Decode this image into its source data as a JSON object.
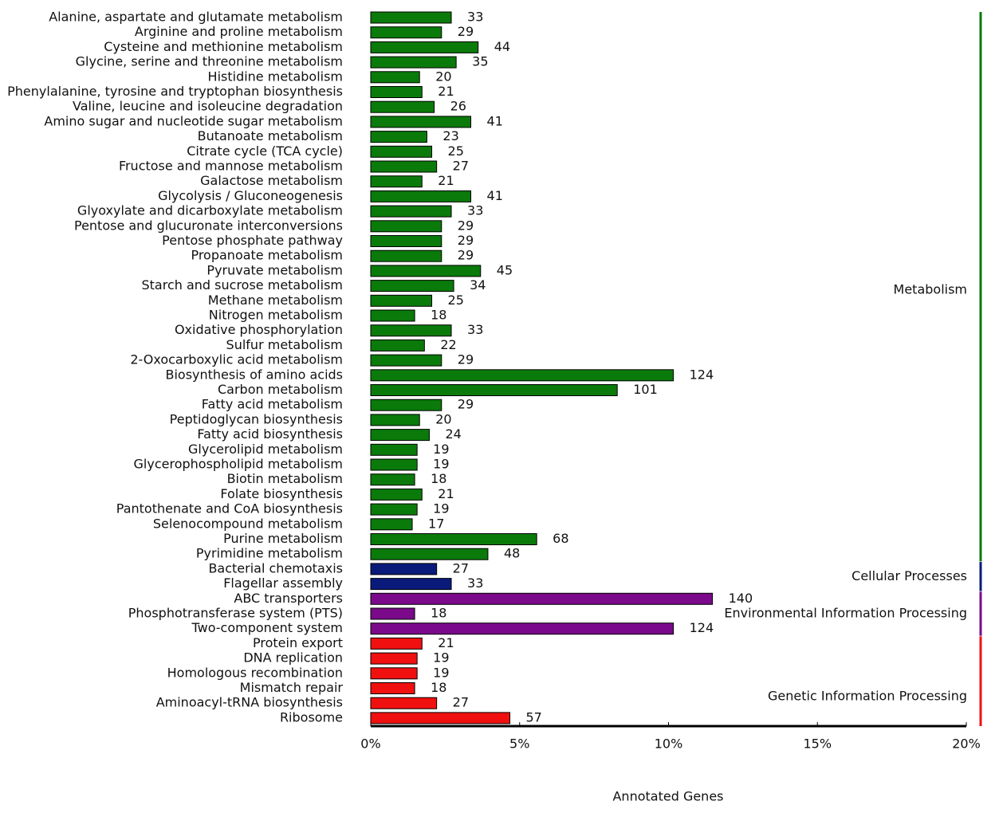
{
  "chart_data": {
    "type": "bar",
    "orientation": "horizontal",
    "xlabel": "Annotated Genes",
    "xlim": [
      0,
      244
    ],
    "xticks": [
      {
        "value": 0,
        "label": "0%"
      },
      {
        "value": 61,
        "label": "5%"
      },
      {
        "value": 122,
        "label": "10%"
      },
      {
        "value": 183,
        "label": "15%"
      },
      {
        "value": 244,
        "label": "20%"
      }
    ],
    "groups": [
      {
        "name": "Metabolism",
        "color": "#0a7a0a",
        "categories": [
          "Alanine, aspartate and glutamate metabolism",
          "Arginine and proline metabolism",
          "Cysteine and methionine metabolism",
          "Glycine, serine and threonine metabolism",
          "Histidine metabolism",
          "Phenylalanine, tyrosine and tryptophan biosynthesis",
          "Valine, leucine and isoleucine degradation",
          "Amino sugar and nucleotide sugar metabolism",
          "Butanoate metabolism",
          "Citrate cycle (TCA cycle)",
          "Fructose and mannose metabolism",
          "Galactose metabolism",
          "Glycolysis / Gluconeogenesis",
          "Glyoxylate and dicarboxylate metabolism",
          "Pentose and glucuronate interconversions",
          "Pentose phosphate pathway",
          "Propanoate metabolism",
          "Pyruvate metabolism",
          "Starch and sucrose metabolism",
          "Methane metabolism",
          "Nitrogen metabolism",
          "Oxidative phosphorylation",
          "Sulfur metabolism",
          "2-Oxocarboxylic acid metabolism",
          "Biosynthesis of amino acids",
          "Carbon metabolism",
          "Fatty acid metabolism",
          "Peptidoglycan biosynthesis",
          "Fatty acid biosynthesis",
          "Glycerolipid metabolism",
          "Glycerophospholipid metabolism",
          "Biotin metabolism",
          "Folate biosynthesis",
          "Pantothenate and CoA biosynthesis",
          "Selenocompound metabolism",
          "Purine metabolism",
          "Pyrimidine metabolism"
        ],
        "values": [
          33,
          29,
          44,
          35,
          20,
          21,
          26,
          41,
          23,
          25,
          27,
          21,
          41,
          33,
          29,
          29,
          29,
          45,
          34,
          25,
          18,
          33,
          22,
          29,
          124,
          101,
          29,
          20,
          24,
          19,
          19,
          18,
          21,
          19,
          17,
          68,
          48
        ]
      },
      {
        "name": "Cellular Processes",
        "color": "#0a1a7a",
        "categories": [
          "Bacterial chemotaxis",
          "Flagellar assembly"
        ],
        "values": [
          27,
          33
        ]
      },
      {
        "name": "Environmental Information Processing",
        "color": "#7a0a8a",
        "categories": [
          "ABC transporters",
          "Phosphotransferase system (PTS)",
          "Two-component system"
        ],
        "values": [
          140,
          18,
          124
        ]
      },
      {
        "name": "Genetic Information Processing",
        "color": "#f01010",
        "categories": [
          "Protein export",
          "DNA replication",
          "Homologous recombination",
          "Mismatch repair",
          "Aminoacyl-tRNA biosynthesis",
          "Ribosome"
        ],
        "values": [
          21,
          19,
          19,
          18,
          27,
          57
        ]
      }
    ]
  }
}
